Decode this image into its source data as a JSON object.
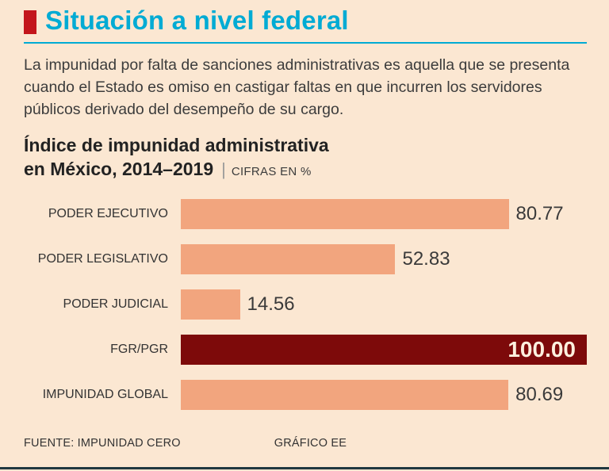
{
  "header": {
    "title": "Situación a nivel federal",
    "accent_color": "#00abd4",
    "bullet_color": "#c3161c"
  },
  "intro": "La impunidad por falta de sanciones administrativas es aquella que se presenta cuando el Estado es omiso en castigar faltas en que incurren los servidores públicos derivado del desempeño de su cargo.",
  "chart_title": {
    "line1": "Índice de impunidad administrativa",
    "line2": "en México, 2014–2019",
    "units": "CIFRAS EN %"
  },
  "chart_data": {
    "type": "bar",
    "orientation": "horizontal",
    "title": "Índice de impunidad administrativa en México, 2014–2019",
    "xlabel": "",
    "ylabel": "",
    "units": "CIFRAS EN %",
    "xlim": [
      0,
      100
    ],
    "grid": false,
    "categories": [
      "PODER EJECUTIVO",
      "PODER LEGISLATIVO",
      "PODER JUDICIAL",
      "FGR/PGR",
      "IMPUNIDAD GLOBAL"
    ],
    "values": [
      80.77,
      52.83,
      14.56,
      100.0,
      80.69
    ],
    "value_labels": [
      "80.77",
      "52.83",
      "14.56",
      "100.00",
      "80.69"
    ],
    "bar_color": "#f2a57e",
    "highlight_color": "#7d0a0a",
    "highlight_index": 3
  },
  "footer": {
    "source": "FUENTE: IMPUNIDAD CERO",
    "credit": "GRÁFICO EE"
  }
}
